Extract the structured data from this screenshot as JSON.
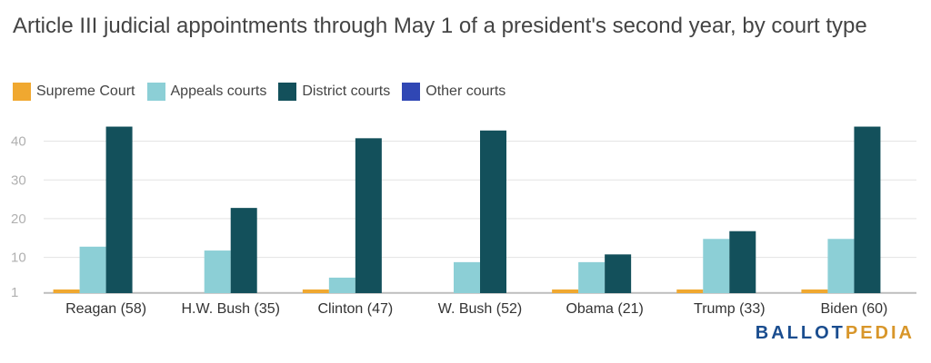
{
  "title": "Article III judicial appointments through May 1 of a president's second year, by court type",
  "brand": {
    "part1": "BALLOT",
    "part2": "PEDIA"
  },
  "chart_data": {
    "type": "bar",
    "title": "Article III judicial appointments through May 1 of a president's second year, by court type",
    "categories": [
      "Reagan (58)",
      "H.W. Bush (35)",
      "Clinton (47)",
      "W. Bush (52)",
      "Obama (21)",
      "Trump (33)",
      "Biden (60)"
    ],
    "series": [
      {
        "name": "Supreme Court",
        "color": "#f0a830",
        "values": [
          1,
          0,
          1,
          0,
          1,
          1,
          1
        ]
      },
      {
        "name": "Appeals courts",
        "color": "#8ccfd6",
        "values": [
          13,
          12,
          5,
          9,
          9,
          15,
          15
        ]
      },
      {
        "name": "District courts",
        "color": "#13505b",
        "values": [
          44,
          23,
          41,
          43,
          11,
          17,
          44
        ]
      },
      {
        "name": "Other courts",
        "color": "#3047b4",
        "values": [
          0,
          0,
          0,
          0,
          0,
          0,
          0
        ]
      }
    ],
    "yticks": [
      1,
      10,
      20,
      30,
      40
    ],
    "ylim": [
      1,
      46
    ],
    "xlabel": "",
    "ylabel": "",
    "grid": true,
    "legend_position": "top-left"
  }
}
